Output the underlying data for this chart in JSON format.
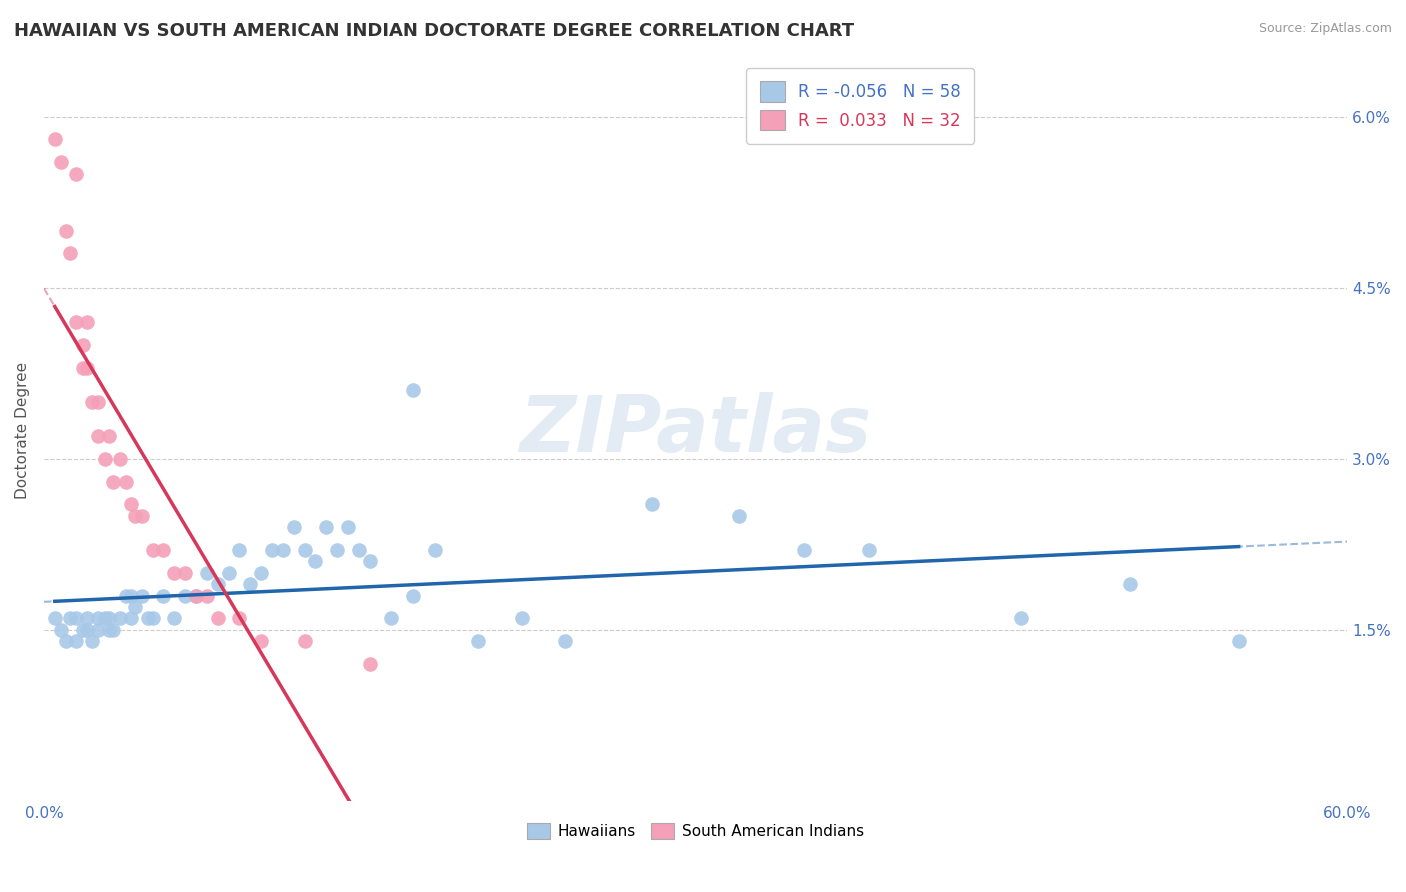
{
  "title": "HAWAIIAN VS SOUTH AMERICAN INDIAN DOCTORATE DEGREE CORRELATION CHART",
  "source": "Source: ZipAtlas.com",
  "ylabel": "Doctorate Degree",
  "watermark": "ZIPatlas",
  "legend_blue_R": "-0.056",
  "legend_blue_N": "58",
  "legend_pink_R": "0.033",
  "legend_pink_N": "32",
  "xlim": [
    0.0,
    0.6
  ],
  "ylim": [
    0.0,
    0.065
  ],
  "xtick_positions": [
    0.0,
    0.6
  ],
  "xtick_labels": [
    "0.0%",
    "60.0%"
  ],
  "yticks_right": [
    0.015,
    0.03,
    0.045,
    0.06
  ],
  "ytick_labels_right": [
    "1.5%",
    "3.0%",
    "4.5%",
    "6.0%"
  ],
  "blue_color": "#a8c8e8",
  "pink_color": "#f4a0b8",
  "blue_line_color": "#2166ac",
  "pink_line_color": "#d6385a",
  "grid_color": "#cccccc",
  "background_color": "#ffffff",
  "blue_scatter_x": [
    0.005,
    0.008,
    0.01,
    0.012,
    0.015,
    0.015,
    0.018,
    0.02,
    0.02,
    0.022,
    0.025,
    0.025,
    0.028,
    0.03,
    0.03,
    0.032,
    0.035,
    0.038,
    0.04,
    0.04,
    0.042,
    0.045,
    0.048,
    0.05,
    0.055,
    0.06,
    0.065,
    0.07,
    0.075,
    0.08,
    0.085,
    0.09,
    0.095,
    0.1,
    0.105,
    0.11,
    0.115,
    0.12,
    0.125,
    0.13,
    0.135,
    0.14,
    0.145,
    0.15,
    0.16,
    0.17,
    0.18,
    0.2,
    0.22,
    0.24,
    0.28,
    0.32,
    0.35,
    0.38,
    0.45,
    0.5,
    0.55,
    0.17
  ],
  "blue_scatter_y": [
    0.016,
    0.015,
    0.014,
    0.016,
    0.014,
    0.016,
    0.015,
    0.016,
    0.015,
    0.014,
    0.016,
    0.015,
    0.016,
    0.015,
    0.016,
    0.015,
    0.016,
    0.018,
    0.016,
    0.018,
    0.017,
    0.018,
    0.016,
    0.016,
    0.018,
    0.016,
    0.018,
    0.018,
    0.02,
    0.019,
    0.02,
    0.022,
    0.019,
    0.02,
    0.022,
    0.022,
    0.024,
    0.022,
    0.021,
    0.024,
    0.022,
    0.024,
    0.022,
    0.021,
    0.016,
    0.018,
    0.022,
    0.014,
    0.016,
    0.014,
    0.026,
    0.025,
    0.022,
    0.022,
    0.016,
    0.019,
    0.014,
    0.036
  ],
  "pink_scatter_x": [
    0.005,
    0.008,
    0.01,
    0.012,
    0.015,
    0.015,
    0.018,
    0.018,
    0.02,
    0.02,
    0.022,
    0.025,
    0.025,
    0.028,
    0.03,
    0.032,
    0.035,
    0.038,
    0.04,
    0.042,
    0.045,
    0.05,
    0.055,
    0.06,
    0.065,
    0.07,
    0.075,
    0.08,
    0.09,
    0.1,
    0.12,
    0.15
  ],
  "pink_scatter_y": [
    0.058,
    0.056,
    0.05,
    0.048,
    0.055,
    0.042,
    0.04,
    0.038,
    0.042,
    0.038,
    0.035,
    0.035,
    0.032,
    0.03,
    0.032,
    0.028,
    0.03,
    0.028,
    0.026,
    0.025,
    0.025,
    0.022,
    0.022,
    0.02,
    0.02,
    0.018,
    0.018,
    0.016,
    0.016,
    0.014,
    0.014,
    0.012
  ],
  "title_fontsize": 13,
  "axis_label_fontsize": 11,
  "tick_fontsize": 11,
  "legend_fontsize": 12
}
